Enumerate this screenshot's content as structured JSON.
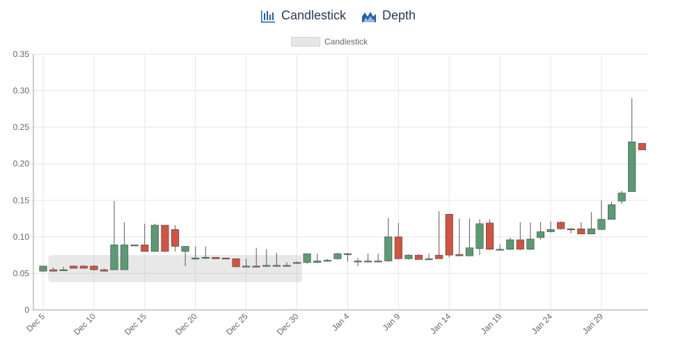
{
  "tabs": [
    {
      "label": "Candlestick",
      "icon": "candlestick-icon"
    },
    {
      "label": "Depth",
      "icon": "depth-chart-icon"
    }
  ],
  "legend": {
    "label": "Candlestick"
  },
  "colors": {
    "up": "#5a9b73",
    "down": "#d2533f",
    "grid": "#e5e5e5",
    "axis": "#999999",
    "tab_text": "#2b3a55",
    "icon_blue": "#1f5fa8",
    "overlay": "#bdbdbd"
  },
  "chart_data": {
    "type": "candlestick",
    "title": "",
    "xlabel": "",
    "ylabel": "",
    "ylim": [
      0,
      0.35
    ],
    "y_ticks": [
      "0",
      "0.05",
      "0.10",
      "0.15",
      "0.20",
      "0.25",
      "0.30",
      "0.35"
    ],
    "x_ticks": [
      "Dec 5",
      "Dec 10",
      "Dec 15",
      "Dec 20",
      "Dec 25",
      "Dec 30",
      "Jan 4",
      "Jan 9",
      "Jan 14",
      "Jan 19",
      "Jan 24",
      "Jan 29"
    ],
    "grid": true,
    "legend_position": "top",
    "selection_range": {
      "from": "Dec 6",
      "to": "Dec 30",
      "low": 0.038,
      "high": 0.075
    },
    "series": [
      {
        "name": "Candlestick",
        "points": [
          {
            "date": "Dec 5",
            "o": 0.053,
            "h": 0.06,
            "l": 0.053,
            "c": 0.06
          },
          {
            "date": "Dec 6",
            "o": 0.055,
            "h": 0.058,
            "l": 0.053,
            "c": 0.053
          },
          {
            "date": "Dec 7",
            "o": 0.055,
            "h": 0.059,
            "l": 0.054,
            "c": 0.055
          },
          {
            "date": "Dec 8",
            "o": 0.06,
            "h": 0.061,
            "l": 0.057,
            "c": 0.057
          },
          {
            "date": "Dec 9",
            "o": 0.06,
            "h": 0.061,
            "l": 0.057,
            "c": 0.057
          },
          {
            "date": "Dec 10",
            "o": 0.06,
            "h": 0.061,
            "l": 0.054,
            "c": 0.055
          },
          {
            "date": "Dec 11",
            "o": 0.055,
            "h": 0.057,
            "l": 0.053,
            "c": 0.053
          },
          {
            "date": "Dec 12",
            "o": 0.055,
            "h": 0.149,
            "l": 0.055,
            "c": 0.089
          },
          {
            "date": "Dec 13",
            "o": 0.055,
            "h": 0.12,
            "l": 0.055,
            "c": 0.089
          },
          {
            "date": "Dec 14",
            "o": 0.089,
            "h": 0.089,
            "l": 0.089,
            "c": 0.089
          },
          {
            "date": "Dec 15",
            "o": 0.089,
            "h": 0.118,
            "l": 0.08,
            "c": 0.08
          },
          {
            "date": "Dec 16",
            "o": 0.08,
            "h": 0.118,
            "l": 0.08,
            "c": 0.116
          },
          {
            "date": "Dec 17",
            "o": 0.116,
            "h": 0.116,
            "l": 0.08,
            "c": 0.08
          },
          {
            "date": "Dec 18",
            "o": 0.11,
            "h": 0.116,
            "l": 0.08,
            "c": 0.087
          },
          {
            "date": "Dec 19",
            "o": 0.08,
            "h": 0.087,
            "l": 0.06,
            "c": 0.087
          },
          {
            "date": "Dec 20",
            "o": 0.07,
            "h": 0.087,
            "l": 0.069,
            "c": 0.071
          },
          {
            "date": "Dec 21",
            "o": 0.071,
            "h": 0.087,
            "l": 0.07,
            "c": 0.072
          },
          {
            "date": "Dec 22",
            "o": 0.072,
            "h": 0.072,
            "l": 0.07,
            "c": 0.07
          },
          {
            "date": "Dec 23",
            "o": 0.071,
            "h": 0.071,
            "l": 0.07,
            "c": 0.07
          },
          {
            "date": "Dec 24",
            "o": 0.07,
            "h": 0.07,
            "l": 0.059,
            "c": 0.059
          },
          {
            "date": "Dec 25",
            "o": 0.06,
            "h": 0.07,
            "l": 0.059,
            "c": 0.06
          },
          {
            "date": "Dec 26",
            "o": 0.06,
            "h": 0.085,
            "l": 0.058,
            "c": 0.059
          },
          {
            "date": "Dec 27",
            "o": 0.06,
            "h": 0.083,
            "l": 0.059,
            "c": 0.061
          },
          {
            "date": "Dec 28",
            "o": 0.061,
            "h": 0.078,
            "l": 0.06,
            "c": 0.061
          },
          {
            "date": "Dec 29",
            "o": 0.061,
            "h": 0.065,
            "l": 0.06,
            "c": 0.061
          },
          {
            "date": "Dec 30",
            "o": 0.064,
            "h": 0.066,
            "l": 0.063,
            "c": 0.065
          },
          {
            "date": "Dec 31",
            "o": 0.065,
            "h": 0.077,
            "l": 0.063,
            "c": 0.077
          },
          {
            "date": "Jan 1",
            "o": 0.065,
            "h": 0.077,
            "l": 0.064,
            "c": 0.067
          },
          {
            "date": "Jan 2",
            "o": 0.067,
            "h": 0.07,
            "l": 0.066,
            "c": 0.068
          },
          {
            "date": "Jan 3",
            "o": 0.07,
            "h": 0.078,
            "l": 0.069,
            "c": 0.077
          },
          {
            "date": "Jan 4",
            "o": 0.077,
            "h": 0.078,
            "l": 0.066,
            "c": 0.077
          },
          {
            "date": "Jan 5",
            "o": 0.066,
            "h": 0.071,
            "l": 0.06,
            "c": 0.067
          },
          {
            "date": "Jan 6",
            "o": 0.066,
            "h": 0.077,
            "l": 0.065,
            "c": 0.067
          },
          {
            "date": "Jan 7",
            "o": 0.067,
            "h": 0.077,
            "l": 0.065,
            "c": 0.067
          },
          {
            "date": "Jan 8",
            "o": 0.067,
            "h": 0.126,
            "l": 0.066,
            "c": 0.1
          },
          {
            "date": "Jan 9",
            "o": 0.1,
            "h": 0.119,
            "l": 0.069,
            "c": 0.07
          },
          {
            "date": "Jan 10",
            "o": 0.07,
            "h": 0.076,
            "l": 0.069,
            "c": 0.075
          },
          {
            "date": "Jan 11",
            "o": 0.075,
            "h": 0.076,
            "l": 0.069,
            "c": 0.069
          },
          {
            "date": "Jan 12",
            "o": 0.07,
            "h": 0.077,
            "l": 0.069,
            "c": 0.07
          },
          {
            "date": "Jan 13",
            "o": 0.075,
            "h": 0.135,
            "l": 0.07,
            "c": 0.07
          },
          {
            "date": "Jan 14",
            "o": 0.131,
            "h": 0.131,
            "l": 0.072,
            "c": 0.075
          },
          {
            "date": "Jan 15",
            "o": 0.076,
            "h": 0.125,
            "l": 0.074,
            "c": 0.074
          },
          {
            "date": "Jan 16",
            "o": 0.074,
            "h": 0.125,
            "l": 0.074,
            "c": 0.085
          },
          {
            "date": "Jan 17",
            "o": 0.084,
            "h": 0.124,
            "l": 0.075,
            "c": 0.118
          },
          {
            "date": "Jan 18",
            "o": 0.119,
            "h": 0.124,
            "l": 0.082,
            "c": 0.083
          },
          {
            "date": "Jan 19",
            "o": 0.083,
            "h": 0.09,
            "l": 0.082,
            "c": 0.083
          },
          {
            "date": "Jan 20",
            "o": 0.083,
            "h": 0.099,
            "l": 0.082,
            "c": 0.096
          },
          {
            "date": "Jan 21",
            "o": 0.096,
            "h": 0.12,
            "l": 0.082,
            "c": 0.083
          },
          {
            "date": "Jan 22",
            "o": 0.083,
            "h": 0.12,
            "l": 0.082,
            "c": 0.097
          },
          {
            "date": "Jan 23",
            "o": 0.099,
            "h": 0.12,
            "l": 0.096,
            "c": 0.107
          },
          {
            "date": "Jan 24",
            "o": 0.107,
            "h": 0.121,
            "l": 0.106,
            "c": 0.11
          },
          {
            "date": "Jan 25",
            "o": 0.12,
            "h": 0.121,
            "l": 0.11,
            "c": 0.111
          },
          {
            "date": "Jan 26",
            "o": 0.111,
            "h": 0.112,
            "l": 0.105,
            "c": 0.11
          },
          {
            "date": "Jan 27",
            "o": 0.111,
            "h": 0.12,
            "l": 0.104,
            "c": 0.104
          },
          {
            "date": "Jan 28",
            "o": 0.104,
            "h": 0.134,
            "l": 0.104,
            "c": 0.111
          },
          {
            "date": "Jan 29",
            "o": 0.11,
            "h": 0.15,
            "l": 0.11,
            "c": 0.124
          },
          {
            "date": "Jan 30",
            "o": 0.124,
            "h": 0.148,
            "l": 0.124,
            "c": 0.144
          },
          {
            "date": "Jan 31",
            "o": 0.149,
            "h": 0.163,
            "l": 0.145,
            "c": 0.16
          },
          {
            "date": "Feb 1",
            "o": 0.162,
            "h": 0.29,
            "l": 0.162,
            "c": 0.23
          },
          {
            "date": "Feb 2",
            "o": 0.228,
            "h": 0.228,
            "l": 0.219,
            "c": 0.219
          }
        ]
      }
    ]
  }
}
